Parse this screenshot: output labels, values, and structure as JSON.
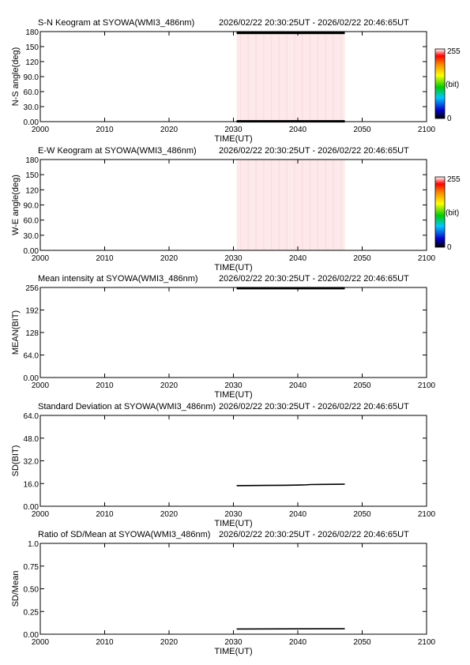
{
  "header_time": "2026/02/22 20:30:25UT - 2026/02/22 20:46:65UT",
  "colors": {
    "axis": "#000000",
    "keogram_fill": "#fde9e9",
    "trace": "#000000"
  },
  "chart_data": [
    {
      "type": "heatmap",
      "title": "S-N Keogram at SYOWA(WMI3_486nm)",
      "xlabel": "TIME(UT)",
      "ylabel": "N-S angle(deg)",
      "xlim": [
        2000,
        2100
      ],
      "ylim": [
        0,
        180
      ],
      "xticks": [
        "2000",
        "2010",
        "2020",
        "2030",
        "2040",
        "2050",
        "2100"
      ],
      "xtick_values": [
        2000,
        2010,
        2020,
        2030,
        2040,
        2050,
        2100
      ],
      "yticks": [
        "0.00",
        "30.0",
        "60.0",
        "90.0",
        "120",
        "150",
        "180"
      ],
      "ytick_values": [
        0,
        30,
        60,
        90,
        120,
        150,
        180
      ],
      "data_x_range": [
        2030.5,
        2047.3
      ],
      "dark_bands_deg": [
        [
          0,
          3
        ],
        [
          175,
          180
        ]
      ],
      "colorbar": {
        "max_label": "255",
        "mid_label": "(bit)",
        "min_label": "0"
      }
    },
    {
      "type": "heatmap",
      "title": "E-W Keogram at SYOWA(WMI3_486nm)",
      "xlabel": "TIME(UT)",
      "ylabel": "W-E angle(deg)",
      "xlim": [
        2000,
        2100
      ],
      "ylim": [
        0,
        180
      ],
      "xticks": [
        "2000",
        "2010",
        "2020",
        "2030",
        "2040",
        "2050",
        "2100"
      ],
      "xtick_values": [
        2000,
        2010,
        2020,
        2030,
        2040,
        2050,
        2100
      ],
      "yticks": [
        "0.00",
        "30.0",
        "60.0",
        "90.0",
        "120",
        "150",
        "180"
      ],
      "ytick_values": [
        0,
        30,
        60,
        90,
        120,
        150,
        180
      ],
      "data_x_range": [
        2030.5,
        2047.3
      ],
      "dark_bands_deg": [],
      "colorbar": {
        "max_label": "255",
        "mid_label": "(bit)",
        "min_label": "0"
      }
    },
    {
      "type": "line",
      "title": "Mean intensity at SYOWA(WMI3_486nm)",
      "xlabel": "TIME(UT)",
      "ylabel": "MEAN(BIT)",
      "xlim": [
        2000,
        2100
      ],
      "ylim": [
        0,
        256
      ],
      "xticks": [
        "2000",
        "2010",
        "2020",
        "2030",
        "2040",
        "2050",
        "2100"
      ],
      "xtick_values": [
        2000,
        2010,
        2020,
        2030,
        2040,
        2050,
        2100
      ],
      "yticks": [
        "0.00",
        "64.0",
        "128",
        "192",
        "256"
      ],
      "ytick_values": [
        0,
        64,
        128,
        192,
        256
      ],
      "series": [
        {
          "x": [
            2030.5,
            2047.3
          ],
          "y": [
            254,
            254
          ]
        }
      ]
    },
    {
      "type": "line",
      "title": "Standard Deviation at SYOWA(WMI3_486nm)",
      "xlabel": "TIME(UT)",
      "ylabel": "SD(BIT)",
      "xlim": [
        2000,
        2100
      ],
      "ylim": [
        0,
        64
      ],
      "xticks": [
        "2000",
        "2010",
        "2020",
        "2030",
        "2040",
        "2050",
        "2100"
      ],
      "xtick_values": [
        2000,
        2010,
        2020,
        2030,
        2040,
        2050,
        2100
      ],
      "yticks": [
        "0.00",
        "16.0",
        "32.0",
        "48.0",
        "64.0"
      ],
      "ytick_values": [
        0,
        16,
        32,
        48,
        64
      ],
      "series": [
        {
          "x": [
            2030.5,
            2032,
            2035,
            2038,
            2041,
            2042,
            2044,
            2047.3
          ],
          "y": [
            14.5,
            14.6,
            14.7,
            14.8,
            15.0,
            15.3,
            15.4,
            15.5
          ]
        }
      ]
    },
    {
      "type": "line",
      "title": "Ratio of SD/Mean at SYOWA(WMI3_486nm)",
      "xlabel": "TIME(UT)",
      "ylabel": "SD/Mean",
      "xlim": [
        2000,
        2100
      ],
      "ylim": [
        0,
        1
      ],
      "xticks": [
        "2000",
        "2010",
        "2020",
        "2030",
        "2040",
        "2050",
        "2100"
      ],
      "xtick_values": [
        2000,
        2010,
        2020,
        2030,
        2040,
        2050,
        2100
      ],
      "yticks": [
        "0.00",
        "0.25",
        "0.50",
        "0.75",
        "1.0"
      ],
      "ytick_values": [
        0,
        0.25,
        0.5,
        0.75,
        1.0
      ],
      "series": [
        {
          "x": [
            2030.5,
            2047.3
          ],
          "y": [
            0.057,
            0.06
          ]
        }
      ]
    }
  ]
}
